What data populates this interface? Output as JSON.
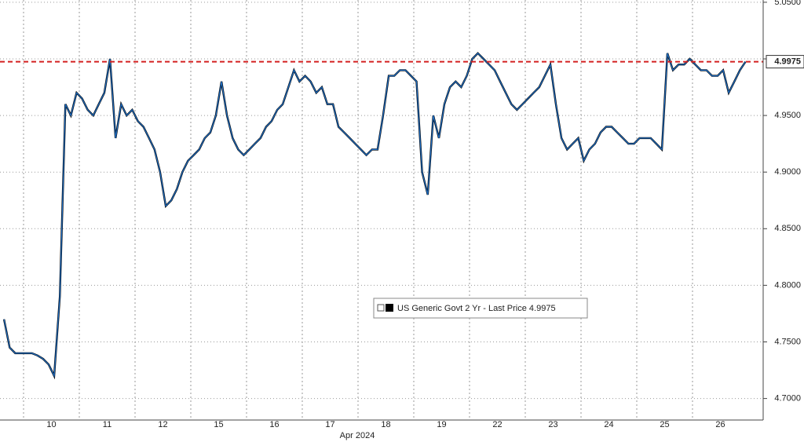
{
  "chart_data": {
    "type": "line",
    "x_label": "Apr 2024",
    "categories": [
      null,
      "10",
      "11",
      "12",
      "15",
      "16",
      "17",
      "18",
      "19",
      "22",
      "23",
      "24",
      "25",
      "26"
    ],
    "series": [
      {
        "name": "US Generic Govt 2 Yr - Last Price 4.9975",
        "color": "#1f6fc6",
        "values": [
          [
            null,
            null,
            null,
            null,
            null,
            null,
            4.77,
            4.745,
            4.74,
            4.74
          ],
          [
            4.74,
            4.74,
            4.738,
            4.735,
            4.73,
            4.72,
            4.79,
            4.96,
            4.95,
            4.97
          ],
          [
            4.965,
            4.955,
            4.95,
            4.96,
            4.97,
            5.0,
            4.93,
            4.96,
            4.95,
            4.955
          ],
          [
            4.945,
            4.94,
            4.93,
            4.92,
            4.9,
            4.87,
            4.875,
            4.885,
            4.9,
            4.91
          ],
          [
            4.915,
            4.92,
            4.93,
            4.935,
            4.95,
            4.98,
            4.95,
            4.93,
            4.92,
            4.915
          ],
          [
            4.92,
            4.925,
            4.93,
            4.94,
            4.945,
            4.955,
            4.96,
            4.975,
            4.99,
            4.98
          ],
          [
            4.985,
            4.98,
            4.97,
            4.975,
            4.96,
            4.96,
            4.94,
            4.935,
            4.93,
            4.925
          ],
          [
            4.92,
            4.915,
            4.92,
            4.92,
            4.95,
            4.985,
            4.985,
            4.99,
            4.99,
            4.985
          ],
          [
            4.98,
            4.9,
            4.88,
            4.95,
            4.93,
            4.96,
            4.975,
            4.98,
            4.975,
            4.985
          ],
          [
            5.0,
            5.005,
            5.0,
            4.995,
            4.99,
            4.98,
            4.97,
            4.96,
            4.955,
            4.96
          ],
          [
            4.965,
            4.97,
            4.975,
            4.985,
            4.995,
            4.96,
            4.93,
            4.92,
            4.925,
            4.93
          ],
          [
            4.91,
            4.92,
            4.925,
            4.935,
            4.94,
            4.94,
            4.935,
            4.93,
            4.925,
            4.925
          ],
          [
            4.93,
            4.93,
            4.93,
            4.925,
            4.92,
            5.005,
            4.99,
            4.995,
            4.995,
            5.0
          ],
          [
            4.995,
            4.99,
            4.99,
            4.985,
            4.985,
            4.99,
            4.97,
            4.98,
            4.99,
            4.9975
          ]
        ]
      }
    ],
    "last_price": {
      "value": 4.9975,
      "label": "4.9975"
    },
    "last_price_color": "#d42020",
    "ylim": [
      4.681,
      5.052
    ],
    "yticks": [
      {
        "value": 4.7,
        "label": "4.7000"
      },
      {
        "value": 4.75,
        "label": "4.7500"
      },
      {
        "value": 4.8,
        "label": "4.8000"
      },
      {
        "value": 4.85,
        "label": "4.8500"
      },
      {
        "value": 4.9,
        "label": "4.9000"
      },
      {
        "value": 4.95,
        "label": "4.9500"
      },
      {
        "value": 5.0,
        "label": "5.0000"
      },
      {
        "value": 5.05,
        "label": "5.0500"
      }
    ],
    "grid": true
  }
}
